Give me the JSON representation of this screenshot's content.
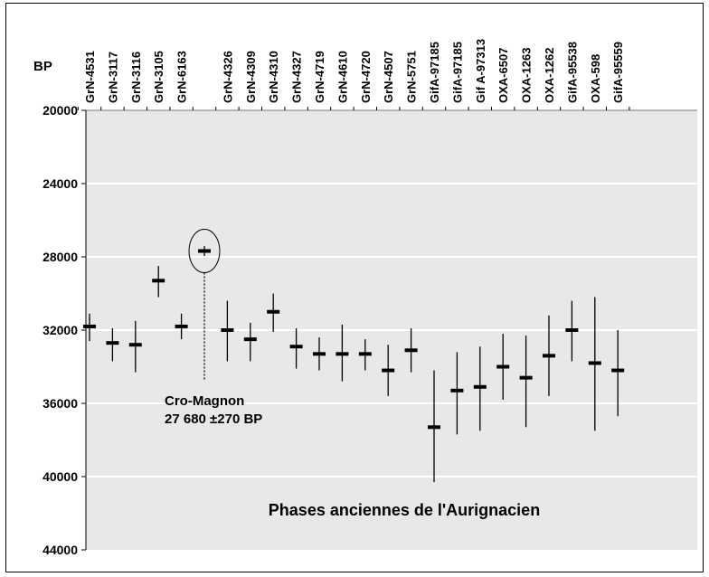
{
  "chart_data": {
    "type": "errorbar",
    "y_axis_label": "BP",
    "y_axis_inverted": true,
    "ylim": [
      20000,
      44000
    ],
    "yticks": [
      "20000",
      "24000",
      "28000",
      "32000",
      "36000",
      "40000",
      "44000"
    ],
    "grid": "horizontal, white lines on grey background",
    "categories": [
      "GrN-4531",
      "GrN-3117",
      "GrN-3116",
      "GrN-3105",
      "GrN-6163",
      "",
      "GrN-4326",
      "GrN-4309",
      "GrN-4310",
      "GrN-4327",
      "GrN-4719",
      "GrN-4610",
      "GrN-4720",
      "GrN-4507",
      "GrN-5751",
      "GifA-97185",
      "GifA-97185",
      "Gif A-97313",
      "OXA-6507",
      "OXA-1263",
      "OXA-1262",
      "GifA-95538",
      "OXA-598",
      "GifA-95559"
    ],
    "points": [
      {
        "label": "GrN-4531",
        "y": 31800,
        "low": 31100,
        "high": 32600
      },
      {
        "label": "GrN-3117",
        "y": 32700,
        "low": 31900,
        "high": 33700
      },
      {
        "label": "GrN-3116",
        "y": 32800,
        "low": 31500,
        "high": 34300
      },
      {
        "label": "GrN-3105",
        "y": 29300,
        "low": 28500,
        "high": 30200
      },
      {
        "label": "GrN-6163",
        "y": 31800,
        "low": 31100,
        "high": 32500
      },
      {
        "label": "Cro-Magnon",
        "y": 27680,
        "low": 27410,
        "high": 27950
      },
      {
        "label": "GrN-4326",
        "y": 32000,
        "low": 30400,
        "high": 33700
      },
      {
        "label": "GrN-4309",
        "y": 32500,
        "low": 31600,
        "high": 33700
      },
      {
        "label": "GrN-4310",
        "y": 31000,
        "low": 30000,
        "high": 32100
      },
      {
        "label": "GrN-4327",
        "y": 32900,
        "low": 31900,
        "high": 34100
      },
      {
        "label": "GrN-4719",
        "y": 33300,
        "low": 32400,
        "high": 34200
      },
      {
        "label": "GrN-4610",
        "y": 33300,
        "low": 31700,
        "high": 34800
      },
      {
        "label": "GrN-4720",
        "y": 33300,
        "low": 32500,
        "high": 34200
      },
      {
        "label": "GrN-4507",
        "y": 34200,
        "low": 32800,
        "high": 35600
      },
      {
        "label": "GrN-5751",
        "y": 33100,
        "low": 31900,
        "high": 34300
      },
      {
        "label": "GifA-97185",
        "y": 37300,
        "low": 34200,
        "high": 40300
      },
      {
        "label": "GifA-97185",
        "y": 35300,
        "low": 33200,
        "high": 37700
      },
      {
        "label": "Gif A-97313",
        "y": 35100,
        "low": 32900,
        "high": 37500
      },
      {
        "label": "OXA-6507",
        "y": 34000,
        "low": 32200,
        "high": 35800
      },
      {
        "label": "OXA-1263",
        "y": 34600,
        "low": 32300,
        "high": 37300
      },
      {
        "label": "OXA-1262",
        "y": 33400,
        "low": 31200,
        "high": 35600
      },
      {
        "label": "GifA-95538",
        "y": 32000,
        "low": 30400,
        "high": 33700
      },
      {
        "label": "OXA-598",
        "y": 33800,
        "low": 30200,
        "high": 37500
      },
      {
        "label": "GifA-95559",
        "y": 34200,
        "low": 32000,
        "high": 36700
      }
    ],
    "highlight_index": 5,
    "annotation_lines": [
      "Cro-Magnon",
      "27 680 ±270 BP"
    ],
    "footer_text": "Phases anciennes de l'Aurignacien",
    "colors": {
      "background": "#e8e8e8",
      "grid": "#ffffff",
      "marks": "#000000"
    }
  }
}
